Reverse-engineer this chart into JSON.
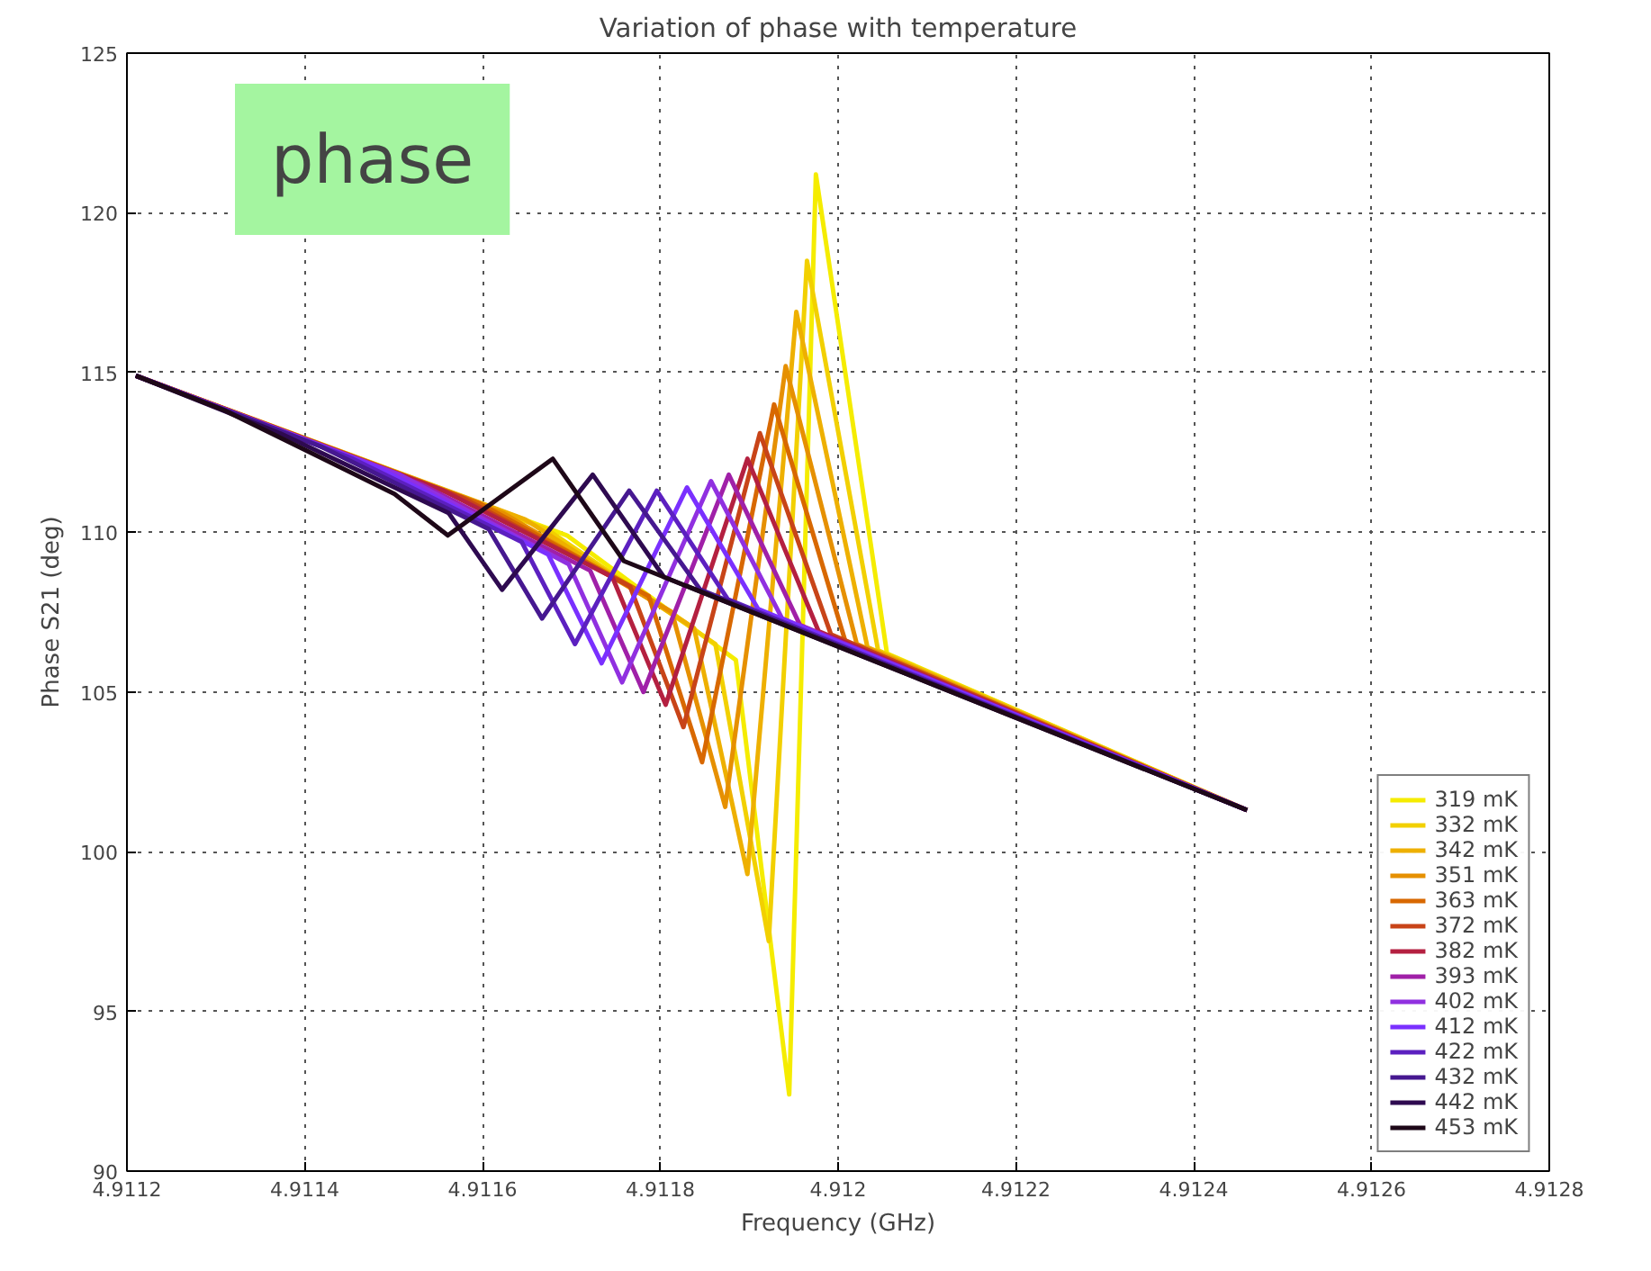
{
  "chart_data": {
    "type": "line",
    "title": "Variation of phase with temperature",
    "xlabel": "Frequency (GHz)",
    "ylabel": "Phase S21 (deg)",
    "xlim": [
      4.9112,
      4.9128
    ],
    "xticks": [
      4.9112,
      4.9114,
      4.9116,
      4.9118,
      4.912,
      4.9122,
      4.9124,
      4.9126,
      4.9128
    ],
    "ylim": [
      90,
      125
    ],
    "yticks": [
      90,
      95,
      100,
      105,
      110,
      115,
      120,
      125
    ],
    "grid": true,
    "legend": "bottom right",
    "line_style": "solid",
    "annotations": [
      "phase"
    ],
    "series": [
      {
        "name": "319 mK",
        "color": "#f5ec00",
        "x": [
          4.91121,
          4.911695,
          4.911885,
          4.911945,
          4.911975,
          4.912055,
          4.91246
        ],
        "values": [
          114.9,
          109.9,
          106.0,
          92.4,
          121.2,
          106.2,
          101.3
        ]
      },
      {
        "name": "332 mK",
        "color": "#f2d000",
        "x": [
          4.91121,
          4.911672,
          4.911862,
          4.911922,
          4.911965,
          4.912045,
          4.91246
        ],
        "values": [
          114.9,
          110.1,
          106.5,
          97.2,
          118.5,
          106.3,
          101.3
        ]
      },
      {
        "name": "342 mK",
        "color": "#eeb000",
        "x": [
          4.91121,
          4.911648,
          4.911838,
          4.911898,
          4.911953,
          4.912033,
          4.91246
        ],
        "values": [
          114.9,
          110.4,
          107.0,
          99.3,
          116.9,
          106.4,
          101.3
        ]
      },
      {
        "name": "351 mK",
        "color": "#e69000",
        "x": [
          4.91121,
          4.911623,
          4.911813,
          4.911873,
          4.911941,
          4.912021,
          4.91246
        ],
        "values": [
          114.9,
          110.6,
          107.5,
          101.4,
          115.2,
          106.5,
          101.3
        ]
      },
      {
        "name": "363 mK",
        "color": "#d86800",
        "x": [
          4.91121,
          4.911597,
          4.911787,
          4.911847,
          4.911928,
          4.912008,
          4.91246
        ],
        "values": [
          114.9,
          110.9,
          108.0,
          102.8,
          114.0,
          106.6,
          101.3
        ]
      },
      {
        "name": "372 mK",
        "color": "#c84418",
        "x": [
          4.91121,
          4.911576,
          4.911766,
          4.911826,
          4.911912,
          4.911992,
          4.91246
        ],
        "values": [
          114.9,
          111.1,
          108.3,
          103.9,
          113.1,
          106.8,
          101.3
        ]
      },
      {
        "name": "382 mK",
        "color": "#b42040",
        "x": [
          4.91121,
          4.911556,
          4.911746,
          4.911806,
          4.911898,
          4.911978,
          4.91246
        ],
        "values": [
          114.9,
          111.3,
          108.6,
          104.6,
          112.3,
          106.9,
          101.3
        ]
      },
      {
        "name": "393 mK",
        "color": "#a020a8",
        "x": [
          4.91121,
          4.911531,
          4.911721,
          4.911781,
          4.911877,
          4.911957,
          4.91246
        ],
        "values": [
          114.9,
          111.5,
          108.8,
          105.0,
          111.8,
          107.1,
          101.3
        ]
      },
      {
        "name": "402 mK",
        "color": "#9030e0",
        "x": [
          4.91121,
          4.911507,
          4.911697,
          4.911757,
          4.911857,
          4.911937,
          4.91246
        ],
        "values": [
          114.9,
          111.8,
          109.0,
          105.3,
          111.6,
          107.3,
          101.3
        ]
      },
      {
        "name": "412 mK",
        "color": "#7a30ff",
        "x": [
          4.91121,
          4.911484,
          4.911674,
          4.911734,
          4.91183,
          4.91191,
          4.91246
        ],
        "values": [
          114.9,
          112.0,
          109.3,
          105.9,
          111.4,
          107.6,
          101.3
        ]
      },
      {
        "name": "422 mK",
        "color": "#5c20c0",
        "x": [
          4.91121,
          4.911454,
          4.911644,
          4.911704,
          4.911796,
          4.911876,
          4.91246
        ],
        "values": [
          114.9,
          112.3,
          109.7,
          106.5,
          111.3,
          107.9,
          101.3
        ]
      },
      {
        "name": "432 mK",
        "color": "#461890",
        "x": [
          4.91121,
          4.911417,
          4.911607,
          4.911667,
          4.911765,
          4.911845,
          4.91246
        ],
        "values": [
          114.9,
          112.7,
          110.1,
          107.3,
          111.3,
          108.2,
          101.3
        ]
      },
      {
        "name": "442 mK",
        "color": "#2e0a50",
        "x": [
          4.91121,
          4.911372,
          4.911562,
          4.911622,
          4.911724,
          4.911804,
          4.91246
        ],
        "values": [
          114.9,
          113.1,
          110.6,
          108.2,
          111.8,
          108.6,
          101.3
        ]
      },
      {
        "name": "453 mK",
        "color": "#1e0818",
        "x": [
          4.91121,
          4.911311,
          4.911501,
          4.911561,
          4.911679,
          4.911759,
          4.91246
        ],
        "values": [
          114.9,
          113.8,
          111.2,
          109.9,
          112.3,
          109.1,
          101.3
        ]
      }
    ]
  }
}
